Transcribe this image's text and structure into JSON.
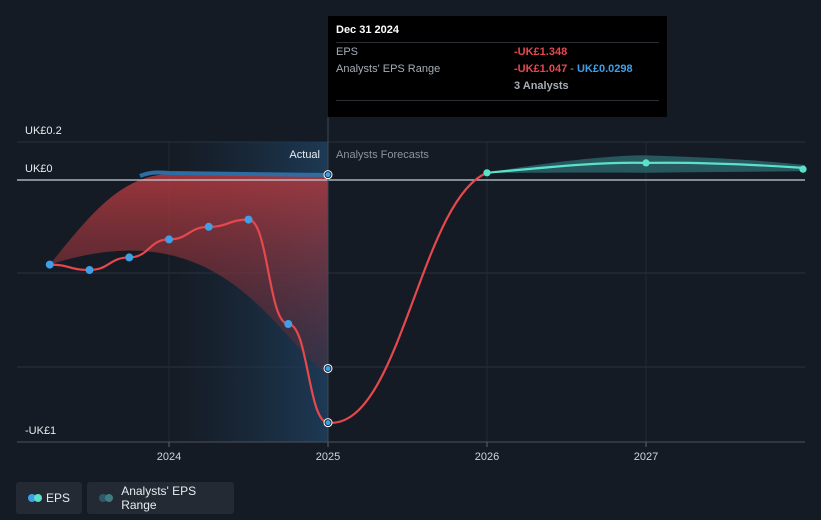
{
  "chart_data": {
    "type": "line",
    "title": "",
    "xlabel": "",
    "ylabel": "",
    "x_ticks": [
      "2024",
      "2025",
      "2026",
      "2027"
    ],
    "y_tick_labels": [
      "UK£0.2",
      "UK£0",
      "-UK£1"
    ],
    "region_labels": {
      "actual": "Actual",
      "forecast": "Analysts Forecasts"
    },
    "series": [
      {
        "name": "EPS",
        "color": "#e5484d",
        "points": [
          {
            "x": 2023.25,
            "y": -0.47
          },
          {
            "x": 2023.5,
            "y": -0.5
          },
          {
            "x": 2023.75,
            "y": -0.43
          },
          {
            "x": 2024.0,
            "y": -0.33
          },
          {
            "x": 2024.25,
            "y": -0.26
          },
          {
            "x": 2024.5,
            "y": -0.22
          },
          {
            "x": 2024.75,
            "y": -0.8
          },
          {
            "x": 2025.0,
            "y": -1.348
          }
        ]
      },
      {
        "name": "EPS Forecast",
        "color": "#5ce1c9",
        "points": [
          {
            "x": 2025.0,
            "y": -1.348
          },
          {
            "x": 2026.0,
            "y": 0.04
          },
          {
            "x": 2027.0,
            "y": 0.095
          },
          {
            "x": 2028.0,
            "y": 0.06
          }
        ]
      }
    ],
    "analyst_range": {
      "name": "Analysts' EPS Range",
      "points": [
        {
          "x": 2025.0,
          "high": 0.0298,
          "low": -1.047
        },
        {
          "x": 2026.0,
          "high": 0.04,
          "low": 0.04
        },
        {
          "x": 2027.0,
          "high": 0.12,
          "low": 0.04
        },
        {
          "x": 2028.0,
          "high": 0.065,
          "low": 0.055
        }
      ]
    },
    "ylim": [
      -1.4,
      0.2
    ],
    "xlim": [
      2023.2,
      2028.0
    ],
    "grid": true
  },
  "tooltip": {
    "date": "Dec 31 2024",
    "eps_label": "EPS",
    "eps_value": "-UK£1.348",
    "range_label": "Analysts' EPS Range",
    "range_low": "-UK£1.047",
    "range_sep": " - ",
    "range_high": "UK£0.0298",
    "analysts": "3 Analysts"
  },
  "legend": {
    "eps": "EPS",
    "range": "Analysts' EPS Range"
  },
  "colors": {
    "eps": "#e5484d",
    "forecast": "#5ce1c9",
    "range_fill": "#2e6e74",
    "actual_band": "#1e3d5a",
    "point": "#3fa0e8"
  }
}
